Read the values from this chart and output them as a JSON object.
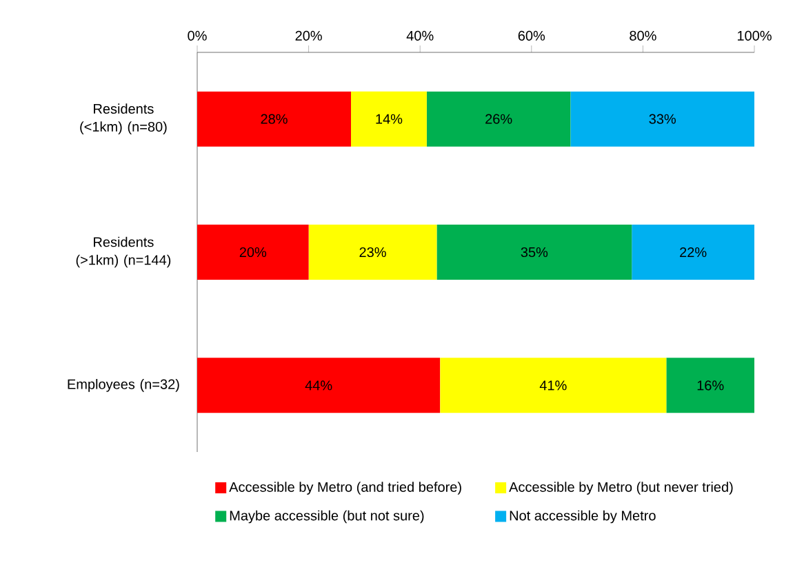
{
  "chart_data": {
    "type": "bar",
    "orientation": "horizontal",
    "stacked": true,
    "categories": [
      "Residents (<1km) (n=80)",
      "Residents (>1km) (n=144)",
      "Employees (n=32)"
    ],
    "series": [
      {
        "name": "Accessible by Metro (and tried before)",
        "color": "#ff0000",
        "values": [
          27.6,
          20,
          43.6
        ],
        "value_labels": [
          "28%",
          "20%",
          "44%"
        ]
      },
      {
        "name": "Accessible by Metro (but never tried)",
        "color": "#ffff00",
        "values": [
          13.6,
          23,
          40.6
        ],
        "value_labels": [
          "14%",
          "23%",
          "41%"
        ]
      },
      {
        "name": "Maybe accessible (but not sure)",
        "color": "#00b050",
        "values": [
          25.8,
          35,
          15.8
        ],
        "value_labels": [
          "26%",
          "35%",
          "16%"
        ]
      },
      {
        "name": "Not accessible by Metro",
        "color": "#00b0f0",
        "values": [
          33,
          22,
          null
        ],
        "value_labels": [
          "33%",
          "22%",
          null
        ]
      }
    ],
    "xlim": [
      0,
      100
    ],
    "xticks": [
      {
        "value": 0,
        "label": "0%"
      },
      {
        "value": 20,
        "label": "20%"
      },
      {
        "value": 40,
        "label": "40%"
      },
      {
        "value": 60,
        "label": "60%"
      },
      {
        "value": 80,
        "label": "80%"
      },
      {
        "value": 100,
        "label": "100%"
      }
    ],
    "legend": "bottom",
    "grid": false
  }
}
